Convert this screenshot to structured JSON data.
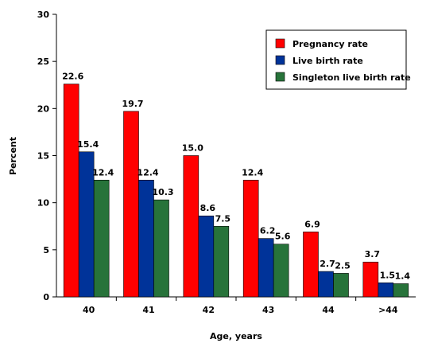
{
  "chart_data": {
    "type": "bar",
    "xlabel": "Age, years",
    "ylabel": "Percent",
    "ylim": [
      0,
      30
    ],
    "yticks": [
      0,
      5,
      10,
      15,
      20,
      25,
      30
    ],
    "categories": [
      "40",
      "41",
      "42",
      "43",
      "44",
      ">44"
    ],
    "series": [
      {
        "name": "Pregnancy rate",
        "color": "#ff0000",
        "values": [
          22.6,
          19.7,
          15.0,
          12.4,
          6.9,
          3.7
        ],
        "labels": [
          "22.6",
          "19.7",
          "15.0",
          "12.4",
          "6.9",
          "3.7"
        ]
      },
      {
        "name": "Live birth rate",
        "color": "#003399",
        "values": [
          15.4,
          12.4,
          8.6,
          6.2,
          2.7,
          1.5
        ],
        "labels": [
          "15.4",
          "12.4",
          "8.6",
          "6.2",
          "2.7",
          "1.5"
        ]
      },
      {
        "name": "Singleton live birth rate",
        "color": "#27733a",
        "values": [
          12.4,
          10.3,
          7.5,
          5.6,
          2.5,
          1.4
        ],
        "labels": [
          "12.4",
          "10.3",
          "7.5",
          "5.6",
          "2.5",
          "1.4"
        ]
      }
    ],
    "legend": "top-right",
    "grid": false
  }
}
